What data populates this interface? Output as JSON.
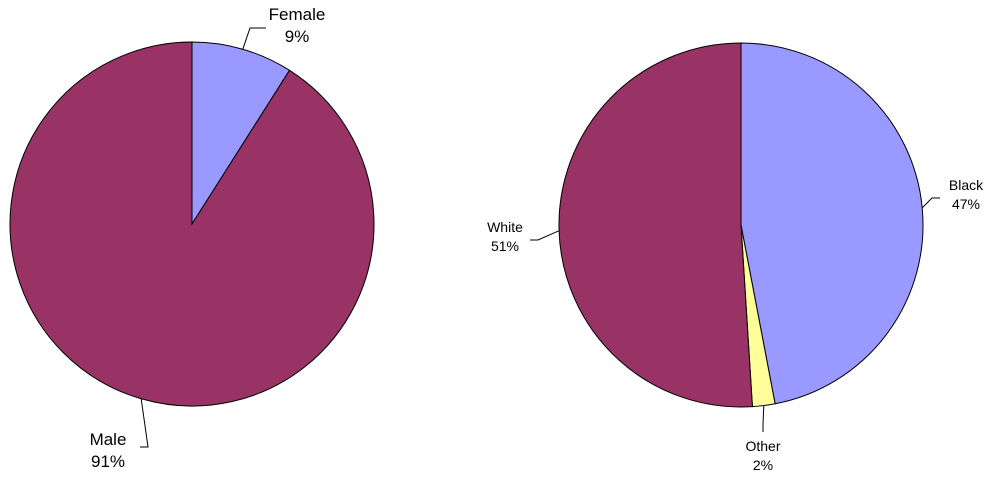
{
  "chart_data": [
    {
      "type": "pie",
      "start_angle": "12 o'clock",
      "direction": "clockwise",
      "slices": [
        {
          "label": "Female",
          "value": 9,
          "value_label": "9%",
          "color": "#9999ff"
        },
        {
          "label": "Male",
          "value": 91,
          "value_label": "91%",
          "color": "#993366"
        }
      ]
    },
    {
      "type": "pie",
      "start_angle": "12 o'clock",
      "direction": "clockwise",
      "slices": [
        {
          "label": "Black",
          "value": 47,
          "value_label": "47%",
          "color": "#9999ff"
        },
        {
          "label": "Other",
          "value": 2,
          "value_label": "2%",
          "color": "#ffff99"
        },
        {
          "label": "White",
          "value": 51,
          "value_label": "51%",
          "color": "#993366"
        }
      ]
    }
  ]
}
